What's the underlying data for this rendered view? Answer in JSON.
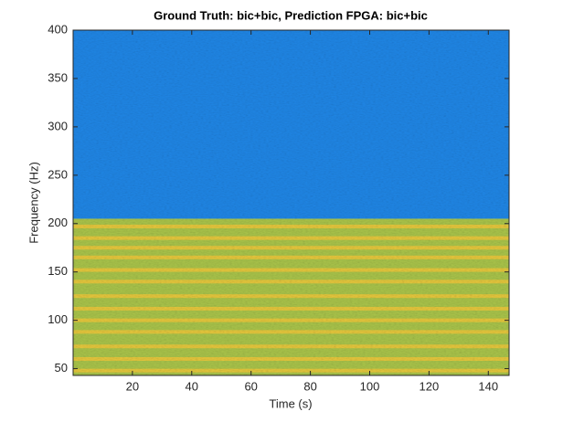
{
  "chart_data": {
    "type": "spectrogram",
    "title": "Ground Truth: bic+bic, Prediction FPGA: bic+bic",
    "x_label": "Time (s)",
    "y_label": "Frequency (Hz)",
    "xlim": [
      0,
      147
    ],
    "ylim": [
      43,
      400
    ],
    "xticks": [
      20,
      40,
      60,
      80,
      100,
      120,
      140
    ],
    "yticks": [
      50,
      100,
      150,
      200,
      250,
      300,
      350,
      400
    ],
    "regions": [
      {
        "ylim": [
          205,
          400
        ],
        "color": "#1f86e6"
      },
      {
        "ylim": [
          43,
          205
        ],
        "color": "#a9c44a"
      }
    ],
    "stripe_color": "#f0c83a",
    "stripe_width": 4,
    "stripes": [
      48,
      60,
      73,
      88,
      100,
      112,
      125,
      140,
      152,
      165,
      175,
      185,
      197
    ]
  }
}
